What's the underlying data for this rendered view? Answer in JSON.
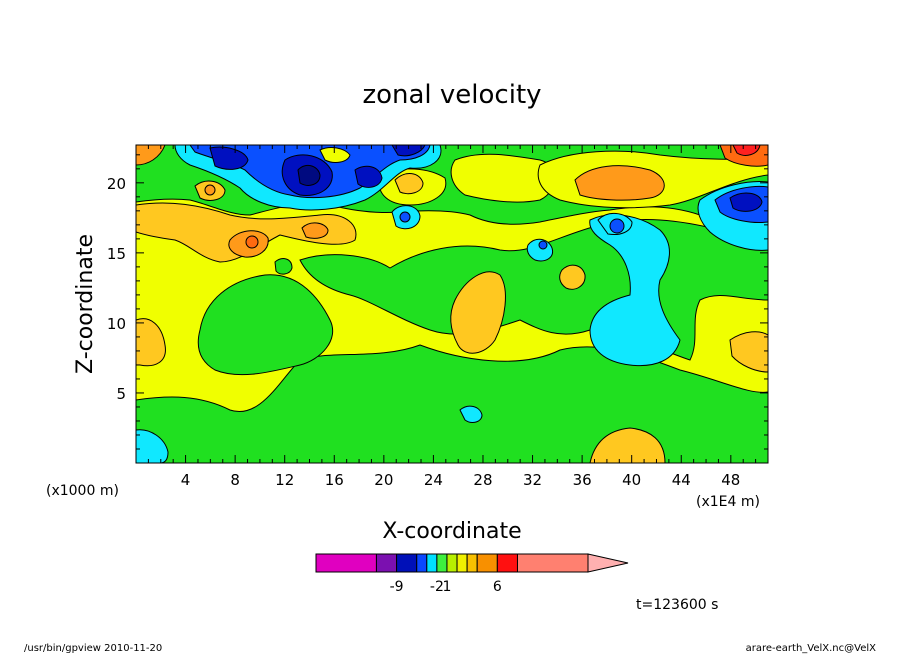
{
  "chart_data": {
    "type": "heatmap",
    "title": "zonal velocity",
    "xlabel": "X-coordinate",
    "ylabel": "Z-coordinate",
    "x_unit_left": "(x1000 m)",
    "x_unit_right": "(x1E4 m)",
    "xlim": [
      0,
      51
    ],
    "ylim": [
      0,
      22.7
    ],
    "x_ticks": [
      4,
      8,
      12,
      16,
      20,
      24,
      28,
      32,
      36,
      40,
      44,
      48
    ],
    "y_ticks": [
      5,
      10,
      15,
      20
    ],
    "colorbar": {
      "bins": [
        {
          "color": "#e000c0",
          "weight": 6
        },
        {
          "color": "#7b10b0",
          "weight": 2
        },
        {
          "color": "#0010b8",
          "weight": 2
        },
        {
          "color": "#0a48ff",
          "weight": 1
        },
        {
          "color": "#00e0ff",
          "weight": 1
        },
        {
          "color": "#3ef03e",
          "weight": 1
        },
        {
          "color": "#b8f000",
          "weight": 1
        },
        {
          "color": "#f0f000",
          "weight": 1
        },
        {
          "color": "#f8c000",
          "weight": 1
        },
        {
          "color": "#f89000",
          "weight": 2
        },
        {
          "color": "#ff1010",
          "weight": 2
        },
        {
          "color": "#ff8070",
          "weight": 7
        }
      ],
      "extend_color": "#ffb0b0",
      "tick_labels": [
        {
          "label": "-9",
          "bin": 1
        },
        {
          "label": "-2",
          "bin": 4
        },
        {
          "label": "1",
          "bin": 5
        },
        {
          "label": "6",
          "bin": 9
        }
      ]
    },
    "colors": {
      "green": "#20e020",
      "yellow": "#f0ff00",
      "orange_light": "#ffc820",
      "orange": "#ff9a1a",
      "orange_dark": "#ff6a10",
      "red": "#ff2020",
      "cyan": "#10e8ff",
      "blue": "#0a50ff",
      "navy": "#0010c0",
      "deep_blue": "#000a80"
    }
  },
  "annotations": {
    "time": "t=123600 s",
    "footer_left": "/usr/bin/gpview   2010-11-20",
    "footer_right": "arare-earth_VelX.nc@VelX"
  }
}
